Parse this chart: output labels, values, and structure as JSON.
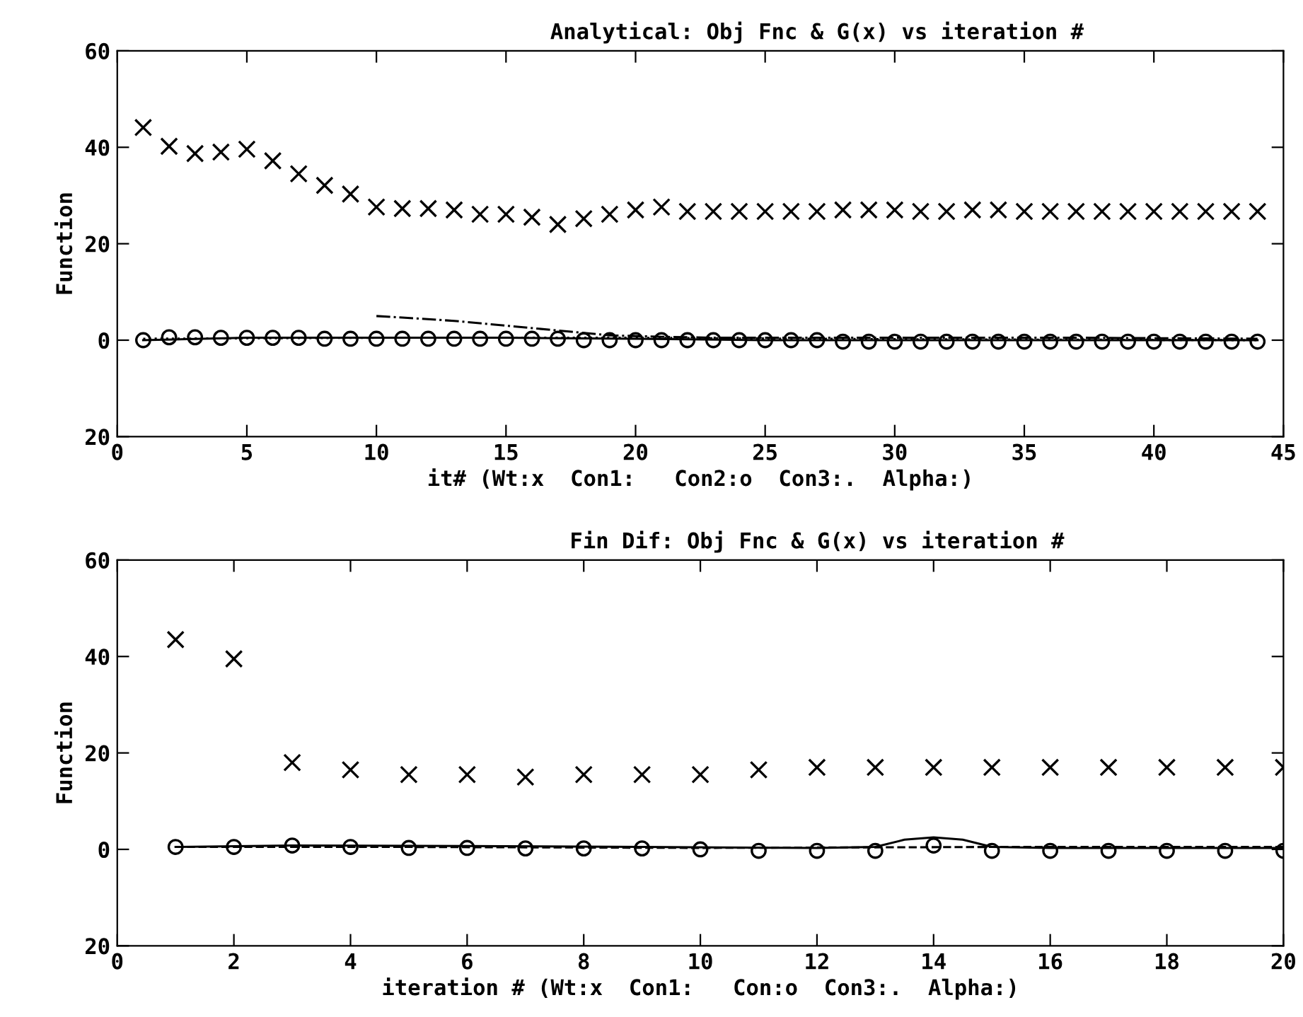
{
  "chart_data": [
    {
      "type": "line",
      "title": "Analytical: Obj Fnc & G(x) vs iteration #",
      "xlabel": "it# (Wt:x  Con1:   Con2:o  Con3:.  Alpha:)",
      "ylabel": "Function",
      "xlim": [
        0,
        45
      ],
      "xticks": [
        0,
        5,
        10,
        15,
        20,
        25,
        30,
        35,
        40,
        45
      ],
      "ylim": [
        -20,
        60
      ],
      "yticks": [
        60,
        40,
        20,
        0,
        {
          "value": -20,
          "label": "20"
        }
      ],
      "grid": false,
      "legend": false,
      "series": [
        {
          "type": "scatter",
          "marker": "cross",
          "color": "#000000",
          "x": [
            1,
            2,
            3,
            4,
            5,
            6,
            7,
            8,
            9,
            10,
            11,
            12,
            13,
            14,
            15,
            16,
            17,
            18,
            19,
            20,
            21,
            22,
            23,
            24,
            25,
            26,
            27,
            28,
            29,
            30,
            31,
            32,
            33,
            34,
            35,
            36,
            37,
            38,
            39,
            40,
            41,
            42,
            43,
            44
          ],
          "values": [
            44.1,
            40.2,
            38.7,
            39,
            39.6,
            37.2,
            34.5,
            32.1,
            30.3,
            27.6,
            27.3,
            27.3,
            27,
            26.1,
            26.1,
            25.5,
            24,
            25.2,
            26.1,
            27,
            27.6,
            26.7,
            26.7,
            26.7,
            26.7,
            26.7,
            26.7,
            27,
            27,
            27,
            26.7,
            26.7,
            27,
            27,
            26.7,
            26.7,
            26.7,
            26.7,
            26.7,
            26.7,
            26.7,
            26.7,
            26.7,
            26.7
          ]
        },
        {
          "marker": "none",
          "line_style": "solid",
          "color": "#000000",
          "x": [
            1,
            5,
            10,
            15,
            20,
            25,
            30,
            35,
            40,
            44
          ],
          "values": [
            0,
            0.5,
            0.5,
            0.5,
            0.3,
            0,
            0,
            0,
            0,
            0
          ]
        },
        {
          "type": "scatter",
          "marker": "circle",
          "color": "#000000",
          "x": [
            1,
            2,
            3,
            4,
            5,
            6,
            7,
            8,
            9,
            10,
            11,
            12,
            13,
            14,
            15,
            16,
            17,
            18,
            19,
            20,
            21,
            22,
            23,
            24,
            25,
            26,
            27,
            28,
            29,
            30,
            31,
            32,
            33,
            34,
            35,
            36,
            37,
            38,
            39,
            40,
            41,
            42,
            43,
            44
          ],
          "values": [
            0,
            0.6,
            0.6,
            0.5,
            0.5,
            0.5,
            0.5,
            0.3,
            0.3,
            0.3,
            0.3,
            0.3,
            0.3,
            0.3,
            0.3,
            0.3,
            0.3,
            0,
            0,
            0,
            0,
            0,
            0,
            0,
            0,
            0,
            0,
            -0.3,
            -0.3,
            -0.3,
            -0.3,
            -0.3,
            -0.3,
            -0.3,
            -0.3,
            -0.3,
            -0.3,
            -0.3,
            -0.3,
            -0.3,
            -0.3,
            -0.3,
            -0.3,
            -0.3
          ]
        },
        {
          "marker": "none",
          "line_style": "dotted",
          "color": "#000000",
          "x": [
            1,
            10,
            20,
            30,
            44
          ],
          "values": [
            0.3,
            0.5,
            0.5,
            0.2,
            0
          ]
        },
        {
          "marker": "none",
          "line_style": "dashdot",
          "color": "#000000",
          "x": [
            10,
            11,
            13,
            15,
            17,
            19,
            21,
            23,
            30,
            37,
            44
          ],
          "values": [
            5,
            4.7,
            4,
            3,
            2,
            1,
            0.7,
            0.5,
            0.5,
            0.5,
            0.3
          ]
        }
      ]
    },
    {
      "type": "line",
      "title": "Fin Dif: Obj Fnc & G(x) vs iteration #",
      "xlabel": "iteration # (Wt:x  Con1:   Con:o  Con3:.  Alpha:)",
      "ylabel": "Function",
      "xlim": [
        0,
        20
      ],
      "xticks": [
        0,
        2,
        4,
        6,
        8,
        10,
        12,
        14,
        16,
        18,
        20
      ],
      "ylim": [
        -20,
        60
      ],
      "yticks": [
        60,
        40,
        20,
        0,
        {
          "value": -20,
          "label": "20"
        }
      ],
      "grid": false,
      "legend": false,
      "series": [
        {
          "type": "scatter",
          "marker": "cross",
          "color": "#000000",
          "x": [
            1,
            2,
            3,
            4,
            5,
            6,
            7,
            8,
            9,
            10,
            11,
            12,
            13,
            14,
            15,
            16,
            17,
            18,
            19,
            20
          ],
          "values": [
            43.5,
            39.5,
            18,
            16.5,
            15.5,
            15.5,
            15,
            15.5,
            15.5,
            15.5,
            16.5,
            17,
            17,
            17,
            17,
            17,
            17,
            17,
            17,
            17
          ]
        },
        {
          "marker": "none",
          "line_style": "solid",
          "color": "#000000",
          "x": [
            1,
            3,
            6,
            9,
            12,
            13,
            13.5,
            14,
            14.5,
            15,
            16,
            18,
            20
          ],
          "values": [
            0.5,
            0.8,
            0.7,
            0.5,
            0.3,
            0.5,
            2,
            2.5,
            2,
            0.5,
            0.3,
            0.3,
            0.3
          ]
        },
        {
          "type": "scatter",
          "marker": "circle",
          "color": "#000000",
          "x": [
            1,
            2,
            3,
            4,
            5,
            6,
            7,
            8,
            9,
            10,
            11,
            12,
            13,
            14,
            15,
            16,
            17,
            18,
            19,
            20
          ],
          "values": [
            0.5,
            0.5,
            0.8,
            0.5,
            0.3,
            0.3,
            0.2,
            0.2,
            0.2,
            0,
            -0.3,
            -0.3,
            -0.3,
            0.8,
            -0.3,
            -0.3,
            -0.3,
            -0.3,
            -0.3,
            -0.3
          ]
        },
        {
          "marker": "none",
          "line_style": "dashed",
          "color": "#000000",
          "x": [
            1,
            5,
            10,
            15,
            20
          ],
          "values": [
            0.5,
            0.5,
            0.3,
            0.5,
            0.5
          ]
        }
      ]
    }
  ]
}
